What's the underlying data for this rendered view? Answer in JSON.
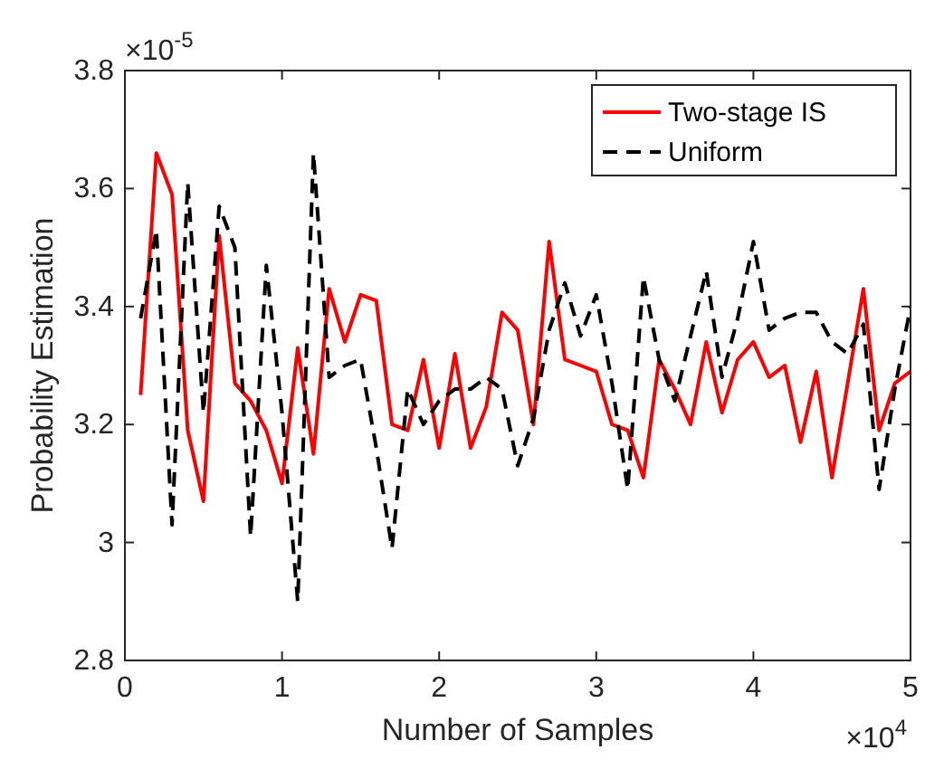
{
  "chart_data": {
    "type": "line",
    "xlabel": "Number of Samples",
    "ylabel": "Probability Estimation",
    "annotations": [
      "×10$^{-5}$",
      "×10$^{4}$"
    ],
    "xlim": [
      0,
      5
    ],
    "xticks": [
      0,
      1,
      2,
      3,
      4,
      5
    ],
    "ylim": [
      2.8,
      3.8
    ],
    "yticks": [
      2.8,
      3,
      3.2,
      3.4,
      3.6,
      3.8
    ],
    "grid": false,
    "legend": "top right",
    "marker": "none",
    "x": [
      0.1,
      0.2,
      0.3,
      0.4,
      0.5,
      0.6,
      0.7,
      0.8,
      0.9,
      1,
      1.1,
      1.2,
      1.3,
      1.4,
      1.5,
      1.6,
      1.7,
      1.8,
      1.9,
      2,
      2.1,
      2.2,
      2.3,
      2.4,
      2.5,
      2.6,
      2.7,
      2.8,
      2.9,
      3,
      3.1,
      3.2,
      3.3,
      3.4,
      3.5,
      3.6,
      3.7,
      3.8,
      3.9,
      4,
      4.1,
      4.2,
      4.3,
      4.4,
      4.5,
      4.6,
      4.7,
      4.8,
      4.9,
      5
    ],
    "series": [
      {
        "name": "Two-stage IS",
        "color": "#ff0000",
        "line_style": "solid",
        "values": [
          3.25,
          3.66,
          3.59,
          3.19,
          3.07,
          3.52,
          3.27,
          3.24,
          3.19,
          3.1,
          3.33,
          3.15,
          3.43,
          3.34,
          3.42,
          3.41,
          3.2,
          3.19,
          3.31,
          3.16,
          3.32,
          3.16,
          3.23,
          3.39,
          3.36,
          3.2,
          3.51,
          3.31,
          3.3,
          3.29,
          3.2,
          3.19,
          3.11,
          3.31,
          3.26,
          3.2,
          3.34,
          3.22,
          3.31,
          3.34,
          3.28,
          3.3,
          3.17,
          3.29,
          3.11,
          3.27,
          3.43,
          3.19,
          3.27,
          3.29
        ]
      },
      {
        "name": "Uniform",
        "color": "#000000",
        "line_style": "dashed",
        "values": [
          3.38,
          3.53,
          3.03,
          3.61,
          3.22,
          3.57,
          3.5,
          3.01,
          3.47,
          3.22,
          2.9,
          3.66,
          3.28,
          3.3,
          3.31,
          3.16,
          2.99,
          3.26,
          3.2,
          3.24,
          3.26,
          3.26,
          3.28,
          3.26,
          3.13,
          3.21,
          3.36,
          3.44,
          3.35,
          3.42,
          3.27,
          3.09,
          3.45,
          3.31,
          3.24,
          3.35,
          3.46,
          3.28,
          3.38,
          3.51,
          3.36,
          3.38,
          3.39,
          3.39,
          3.34,
          3.32,
          3.37,
          3.09,
          3.26,
          3.4
        ]
      }
    ]
  }
}
